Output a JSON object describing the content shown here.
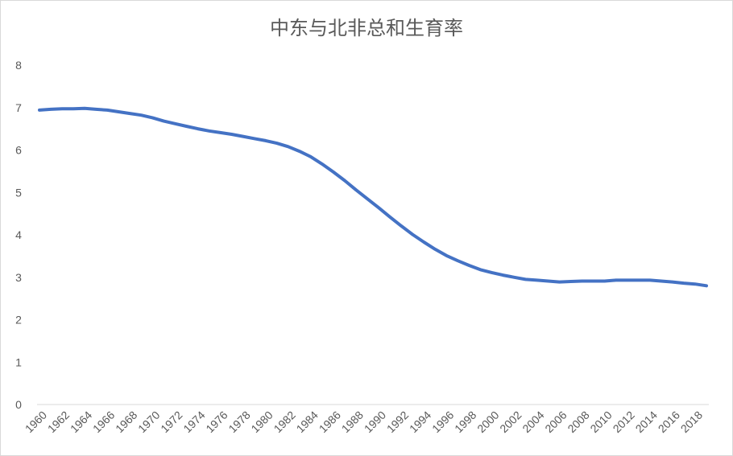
{
  "chart_data": {
    "type": "line",
    "title": "中东与北非总和生育率",
    "xlabel": "",
    "ylabel": "",
    "ylim": [
      0,
      8
    ],
    "yticks": [
      "0",
      "1",
      "2",
      "3",
      "4",
      "5",
      "6",
      "7",
      "8"
    ],
    "xtick_labels": [
      "1960",
      "1962",
      "1964",
      "1966",
      "1968",
      "1970",
      "1972",
      "1974",
      "1976",
      "1978",
      "1980",
      "1982",
      "1984",
      "1986",
      "1988",
      "1990",
      "1992",
      "1994",
      "1996",
      "1998",
      "2000",
      "2002",
      "2004",
      "2006",
      "2008",
      "2010",
      "2012",
      "2014",
      "2016",
      "2018"
    ],
    "grid": false,
    "legend": "none",
    "series": [
      {
        "color": "#4472c4",
        "x": [
          1960,
          1961,
          1962,
          1963,
          1964,
          1965,
          1966,
          1967,
          1968,
          1969,
          1970,
          1971,
          1972,
          1973,
          1974,
          1975,
          1976,
          1977,
          1978,
          1979,
          1980,
          1981,
          1982,
          1983,
          1984,
          1985,
          1986,
          1987,
          1988,
          1989,
          1990,
          1991,
          1992,
          1993,
          1994,
          1995,
          1996,
          1997,
          1998,
          1999,
          2000,
          2001,
          2002,
          2003,
          2004,
          2005,
          2006,
          2007,
          2008,
          2009,
          2010,
          2011,
          2012,
          2013,
          2014,
          2015,
          2016,
          2017,
          2018,
          2019
        ],
        "values": [
          6.94,
          6.96,
          6.97,
          6.97,
          6.98,
          6.96,
          6.94,
          6.9,
          6.86,
          6.82,
          6.76,
          6.68,
          6.62,
          6.56,
          6.5,
          6.45,
          6.41,
          6.37,
          6.32,
          6.27,
          6.22,
          6.16,
          6.08,
          5.97,
          5.84,
          5.67,
          5.48,
          5.28,
          5.06,
          4.85,
          4.64,
          4.42,
          4.21,
          4.01,
          3.83,
          3.66,
          3.51,
          3.39,
          3.28,
          3.18,
          3.11,
          3.05,
          3.0,
          2.95,
          2.93,
          2.91,
          2.89,
          2.9,
          2.91,
          2.91,
          2.91,
          2.93,
          2.93,
          2.93,
          2.93,
          2.91,
          2.89,
          2.86,
          2.84,
          2.8
        ]
      }
    ]
  }
}
